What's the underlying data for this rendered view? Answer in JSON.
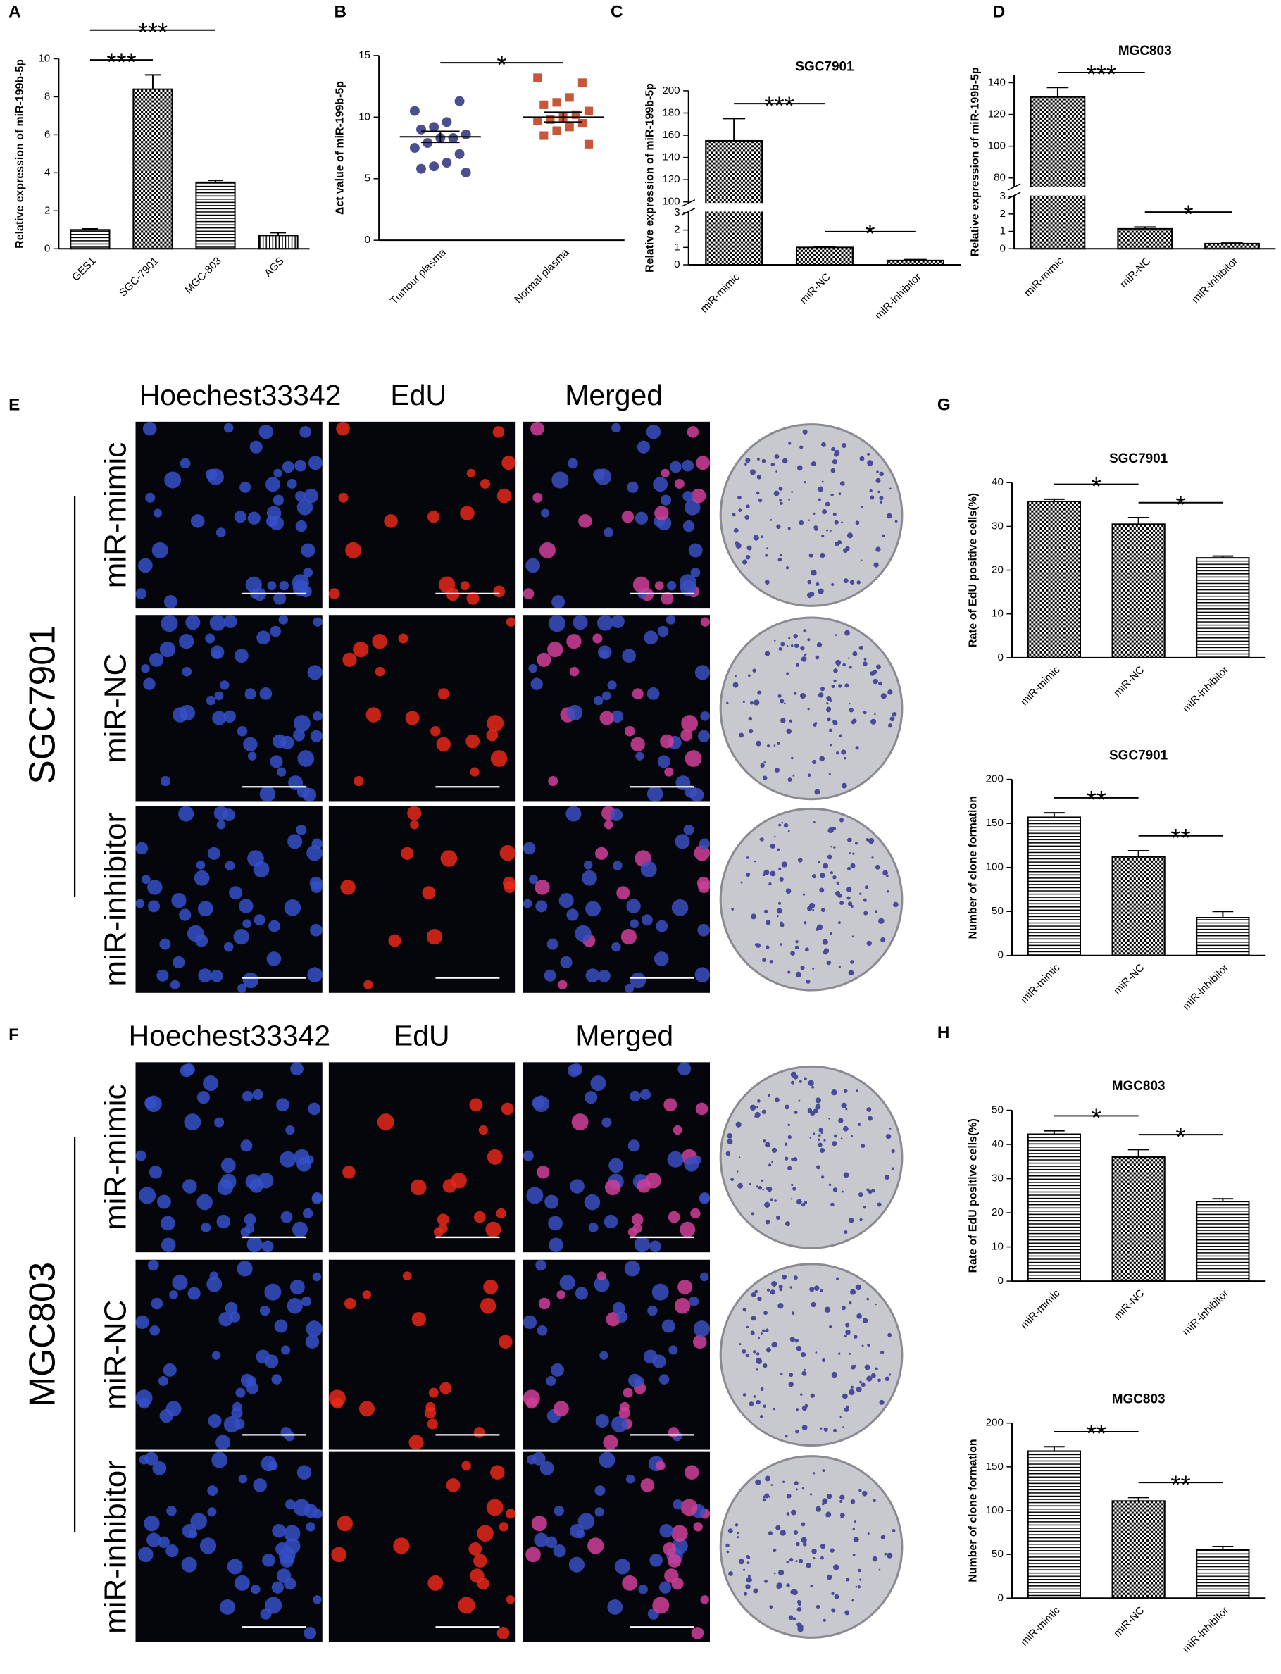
{
  "chart_data": [
    {
      "panel": "A",
      "type": "bar",
      "ylabel": "Relative expression of miR-199b-5p",
      "categories": [
        "GES1",
        "SGC-7901",
        "MGC-803",
        "AGS"
      ],
      "values": [
        1,
        8.4,
        3.5,
        0.7
      ],
      "errors": [
        0.05,
        0.75,
        0.1,
        0.15
      ],
      "hatches": [
        "hlines",
        "checker",
        "hlines",
        "vlines"
      ],
      "color": "#000000",
      "ylim": [
        0,
        10
      ],
      "yticks": [
        0,
        2,
        4,
        6,
        8,
        10
      ],
      "significance": [
        {
          "from": 0,
          "to": 1,
          "label": "***"
        },
        {
          "from": 0,
          "to": 2,
          "label": "***"
        }
      ]
    },
    {
      "panel": "B",
      "type": "strip",
      "ylabel": "Δct value of miR-199b-5p",
      "categories": [
        "Tumour plasma",
        "Normal plasma"
      ],
      "groups": [
        {
          "values": [
            10.5,
            11.3,
            9.6,
            9.2,
            9.0,
            8.6,
            8.3,
            8.3,
            7.9,
            7.5,
            7.0,
            6.3,
            6.0,
            5.8,
            5.5
          ],
          "mean": 8.4,
          "error": 0.45,
          "color": "#4b4f8e",
          "marker": "circle"
        },
        {
          "values": [
            13.2,
            12.8,
            11.6,
            11.2,
            11.0,
            10.5,
            10.2,
            10.0,
            9.8,
            9.7,
            9.5,
            9.2,
            8.9,
            8.5,
            7.8
          ],
          "mean": 10.0,
          "error": 0.4,
          "color": "#c8573a",
          "marker": "square"
        }
      ],
      "ylim": [
        0,
        15
      ],
      "yticks": [
        0,
        5,
        10,
        15
      ],
      "significance": [
        {
          "from": 0,
          "to": 1,
          "label": "*"
        }
      ]
    },
    {
      "panel": "C",
      "type": "bar",
      "title": "SGC7901",
      "ylabel": "Relative expression of miR-199b-5p",
      "categories": [
        "miR-mimic",
        "miR-NC",
        "miR-inhibitor"
      ],
      "values": [
        155,
        1,
        0.25
      ],
      "errors": [
        20,
        0.05,
        0.05
      ],
      "hatches": [
        "checker",
        "checker",
        "checker"
      ],
      "color": "#000000",
      "ylim": [
        0,
        200
      ],
      "ybreak": [
        3,
        100
      ],
      "yticks": [
        0,
        1,
        2,
        3,
        100,
        120,
        140,
        160,
        180,
        200
      ],
      "significance": [
        {
          "from": 0,
          "to": 1,
          "label": "***"
        },
        {
          "from": 1,
          "to": 2,
          "label": "*"
        }
      ]
    },
    {
      "panel": "D",
      "type": "bar",
      "title": "MGC803",
      "ylabel": "Relative expression of miR-199b-5p",
      "categories": [
        "miR-mimic",
        "miR-NC",
        "miR-inhibitor"
      ],
      "values": [
        131,
        1.15,
        0.3
      ],
      "errors": [
        6,
        0.1,
        0.03
      ],
      "hatches": [
        "checker",
        "checker",
        "checker"
      ],
      "color": "#000000",
      "ylim": [
        0,
        145
      ],
      "ybreak": [
        3,
        75
      ],
      "yticks": [
        0,
        1,
        2,
        3,
        80,
        100,
        120,
        140
      ],
      "significance": [
        {
          "from": 0,
          "to": 1,
          "label": "***"
        },
        {
          "from": 1,
          "to": 2,
          "label": "*"
        }
      ]
    },
    {
      "panel": "G",
      "type": "bar",
      "title": "SGC7901",
      "ylabel": "Rate of EdU positive cells(%)",
      "categories": [
        "miR-mimic",
        "miR-NC",
        "miR-inhibitor"
      ],
      "values": [
        35.7,
        30.5,
        22.8
      ],
      "errors": [
        0.5,
        1.5,
        0.4
      ],
      "hatches": [
        "checker",
        "checker",
        "hlines"
      ],
      "color": "#000000",
      "ylim": [
        0,
        40
      ],
      "yticks": [
        0,
        10,
        20,
        30,
        40
      ],
      "significance": [
        {
          "from": 0,
          "to": 1,
          "label": "*"
        },
        {
          "from": 1,
          "to": 2,
          "label": "*"
        }
      ]
    },
    {
      "type": "bar",
      "title": "SGC7901",
      "ylabel": "Number of clone formation",
      "categories": [
        "miR-mimic",
        "miR-NC",
        "miR-inhibitor"
      ],
      "values": [
        157,
        112,
        43
      ],
      "errors": [
        5,
        7,
        7
      ],
      "hatches": [
        "hlines",
        "checker",
        "hlines"
      ],
      "color": "#000000",
      "ylim": [
        0,
        200
      ],
      "yticks": [
        0,
        50,
        100,
        150,
        200
      ],
      "significance": [
        {
          "from": 0,
          "to": 1,
          "label": "**"
        },
        {
          "from": 1,
          "to": 2,
          "label": "**"
        }
      ]
    },
    {
      "panel": "H",
      "type": "bar",
      "title": "MGC803",
      "ylabel": "Rate of EdU positive cells(%)",
      "categories": [
        "miR-mimic",
        "miR-NC",
        "miR-inhibitor"
      ],
      "values": [
        43,
        36.3,
        23.3
      ],
      "errors": [
        1,
        2.2,
        0.8
      ],
      "hatches": [
        "hlines",
        "checker",
        "hlines"
      ],
      "color": "#000000",
      "ylim": [
        0,
        50
      ],
      "yticks": [
        0,
        10,
        20,
        30,
        40,
        50
      ],
      "significance": [
        {
          "from": 0,
          "to": 1,
          "label": "*"
        },
        {
          "from": 1,
          "to": 2,
          "label": "*"
        }
      ]
    },
    {
      "type": "bar",
      "title": "MGC803",
      "ylabel": "Number of clone formation",
      "categories": [
        "miR-mimic",
        "miR-NC",
        "miR-inhibitor"
      ],
      "values": [
        168,
        111,
        55
      ],
      "errors": [
        5,
        4,
        4
      ],
      "hatches": [
        "hlines",
        "checker",
        "hlines"
      ],
      "color": "#000000",
      "ylim": [
        0,
        200
      ],
      "yticks": [
        0,
        50,
        100,
        150,
        200
      ],
      "significance": [
        {
          "from": 0,
          "to": 1,
          "label": "**"
        },
        {
          "from": 1,
          "to": 2,
          "label": "**"
        }
      ]
    }
  ],
  "micrographs": [
    {
      "panel": "E",
      "cell_line": "SGC7901",
      "columns": [
        "Hoechest33342",
        "EdU",
        "Merged"
      ],
      "rows": [
        "miR-mimic",
        "miR-NC",
        "miR-inhibitor"
      ]
    },
    {
      "panel": "F",
      "cell_line": "MGC803",
      "columns": [
        "Hoechest33342",
        "EdU",
        "Merged"
      ],
      "rows": [
        "miR-mimic",
        "miR-NC",
        "miR-inhibitor"
      ]
    }
  ]
}
